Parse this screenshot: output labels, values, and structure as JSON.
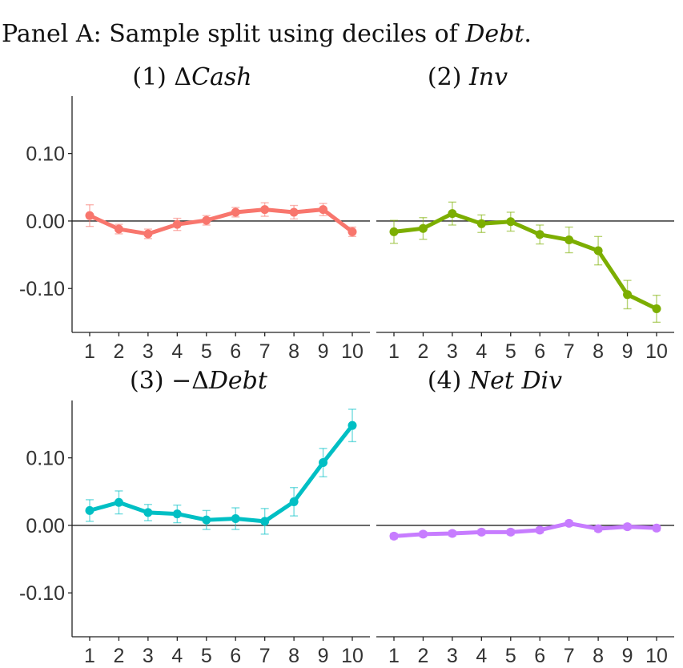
{
  "figure_title": {
    "prefix": "Panel A: Sample split using deciles of ",
    "italic": "Debt",
    "suffix": "."
  },
  "chart_data": [
    {
      "type": "line",
      "panel": "(1)",
      "title_prefix": "(1) ",
      "title_symbol": "Δ",
      "title_italic": "Cash",
      "x": [
        1,
        2,
        3,
        4,
        5,
        6,
        7,
        8,
        9,
        10
      ],
      "x_ticks": [
        "1",
        "2",
        "3",
        "4",
        "5",
        "6",
        "7",
        "8",
        "9",
        "10"
      ],
      "y": [
        0.008,
        -0.012,
        -0.019,
        -0.005,
        0.001,
        0.013,
        0.017,
        0.013,
        0.017,
        -0.016
      ],
      "err": [
        0.016,
        0.007,
        0.007,
        0.009,
        0.007,
        0.007,
        0.01,
        0.01,
        0.009,
        0.007
      ],
      "y_ticks": [
        "0.10",
        "0.00",
        "-0.10"
      ],
      "ylim": [
        -0.165,
        0.185
      ],
      "color": "#F8766D",
      "show_y_axis": true
    },
    {
      "type": "line",
      "panel": "(2)",
      "title_prefix": "(2) ",
      "title_symbol": "",
      "title_italic": "Inv",
      "x": [
        1,
        2,
        3,
        4,
        5,
        6,
        7,
        8,
        9,
        10
      ],
      "x_ticks": [
        "1",
        "2",
        "3",
        "4",
        "5",
        "6",
        "7",
        "8",
        "9",
        "10"
      ],
      "y": [
        -0.016,
        -0.011,
        0.011,
        -0.004,
        -0.001,
        -0.02,
        -0.028,
        -0.044,
        -0.109,
        -0.13
      ],
      "err": [
        0.017,
        0.016,
        0.017,
        0.013,
        0.014,
        0.014,
        0.019,
        0.021,
        0.021,
        0.02
      ],
      "ylim": [
        -0.165,
        0.185
      ],
      "color": "#7CAE00",
      "show_y_axis": false
    },
    {
      "type": "line",
      "panel": "(3)",
      "title_prefix": "(3) −",
      "title_symbol": "Δ",
      "title_italic": "Debt",
      "x": [
        1,
        2,
        3,
        4,
        5,
        6,
        7,
        8,
        9,
        10
      ],
      "x_ticks": [
        "1",
        "2",
        "3",
        "4",
        "5",
        "6",
        "7",
        "8",
        "9",
        "10"
      ],
      "y": [
        0.022,
        0.034,
        0.019,
        0.017,
        0.008,
        0.01,
        0.006,
        0.035,
        0.093,
        0.148
      ],
      "err": [
        0.016,
        0.017,
        0.012,
        0.013,
        0.014,
        0.016,
        0.019,
        0.021,
        0.021,
        0.024
      ],
      "y_ticks": [
        "0.10",
        "0.00",
        "-0.10"
      ],
      "ylim": [
        -0.165,
        0.185
      ],
      "color": "#00BFC4",
      "show_y_axis": true
    },
    {
      "type": "line",
      "panel": "(4)",
      "title_prefix": "(4) ",
      "title_symbol": "",
      "title_italic": "Net Div",
      "x": [
        1,
        2,
        3,
        4,
        5,
        6,
        7,
        8,
        9,
        10
      ],
      "x_ticks": [
        "1",
        "2",
        "3",
        "4",
        "5",
        "6",
        "7",
        "8",
        "9",
        "10"
      ],
      "y": [
        -0.016,
        -0.013,
        -0.012,
        -0.01,
        -0.01,
        -0.007,
        0.003,
        -0.005,
        -0.002,
        -0.004
      ],
      "err": [
        0.004,
        0.004,
        0.004,
        0.004,
        0.004,
        0.004,
        0.004,
        0.004,
        0.004,
        0.004
      ],
      "ylim": [
        -0.165,
        0.185
      ],
      "color": "#C77CFF",
      "show_y_axis": false
    }
  ]
}
